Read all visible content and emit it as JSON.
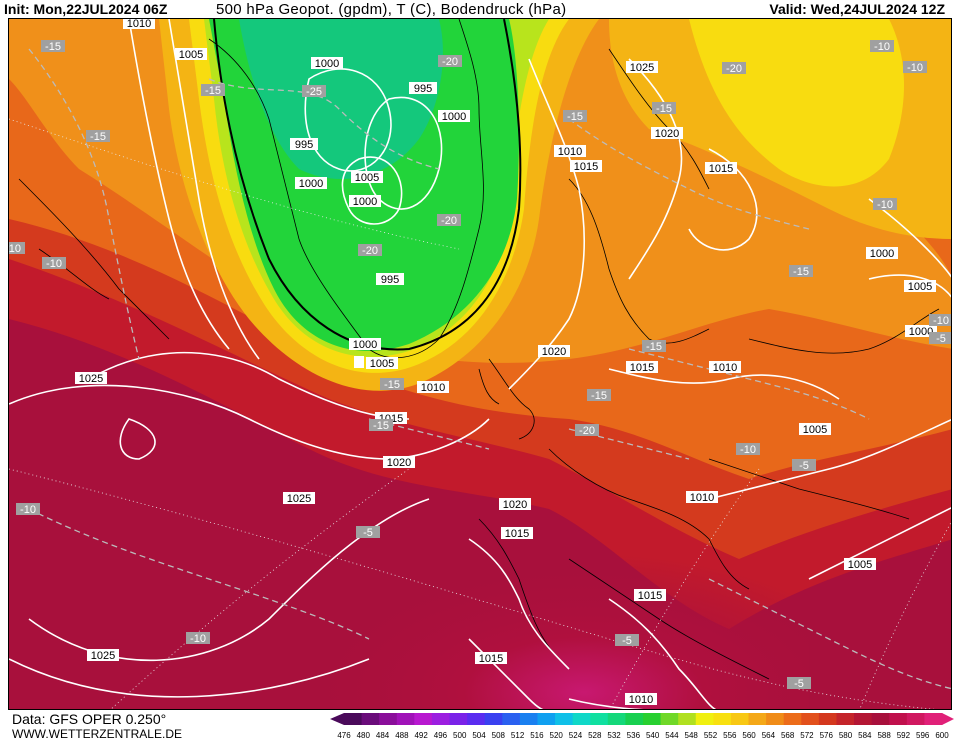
{
  "header": {
    "init": "Init: Mon,22JUL2024 06Z",
    "title": "500 hPa Geopot. (gpdm), T (C), Bodendruck (hPa)",
    "valid": "Valid: Wed,24JUL2024 12Z"
  },
  "map": {
    "pressure_labels": [
      "1010",
      "1005",
      "1000",
      "995",
      "1000",
      "995",
      "1000",
      "1005",
      "1000",
      "995",
      "1000",
      "1000",
      "1005",
      "1025",
      "1020",
      "1010",
      "1015",
      "1015",
      "1000",
      "1005",
      "1020",
      "1015",
      "1010",
      "1025",
      "1015",
      "1020",
      "1010",
      "1005",
      "1025",
      "1020",
      "1015",
      "1010",
      "1005",
      "1015",
      "1015",
      "1010",
      "1025",
      "1000",
      "1005"
    ],
    "temperature_labels": [
      "-15",
      "-15",
      "-15",
      "-25",
      "-20",
      "-20",
      "-20",
      "-15",
      "-10",
      "-15",
      "-15",
      "-20",
      "-10",
      "-10",
      "-10",
      "-15",
      "-15",
      "-15",
      "-15",
      "-10",
      "-20",
      "-10",
      "-5",
      "-5",
      "-5",
      "-5",
      "-10",
      "-10",
      "-5",
      "-10"
    ],
    "colors": {
      "magenta": "#c81870",
      "deep_red": "#a8103c",
      "red": "#c21a2c",
      "red_orange": "#d43a1e",
      "orange": "#e8681a",
      "light_orange": "#f0901a",
      "amber": "#f4b414",
      "yellow": "#f8dc10",
      "lime": "#b8e41c",
      "green": "#22d43a",
      "teal": "#14c87c"
    }
  },
  "footer": {
    "data_source": "Data: GFS OPER 0.250°",
    "website": "WWW.WETTERZENTRALE.DE"
  },
  "legend": {
    "ticks": [
      "476",
      "480",
      "484",
      "488",
      "492",
      "496",
      "500",
      "504",
      "508",
      "512",
      "516",
      "520",
      "524",
      "528",
      "532",
      "536",
      "540",
      "544",
      "548",
      "552",
      "556",
      "560",
      "564",
      "568",
      "572",
      "576",
      "580",
      "584",
      "588",
      "592",
      "596",
      "600"
    ],
    "colors": [
      "#4a0a5a",
      "#6a0c7a",
      "#8a0e9a",
      "#a012b8",
      "#b818d0",
      "#9c1ee0",
      "#7a22e8",
      "#5a2cf0",
      "#3a40f0",
      "#2a60f0",
      "#1a80f0",
      "#10a0f0",
      "#10c0e8",
      "#10d8c8",
      "#10e0a0",
      "#14d87a",
      "#18d050",
      "#28d030",
      "#70d828",
      "#b0e020",
      "#f0f010",
      "#f8e010",
      "#f8c814",
      "#f4a818",
      "#f08c18",
      "#ec6c1a",
      "#e2501c",
      "#d4381e",
      "#c4242a",
      "#b41634",
      "#a8103c",
      "#c0104c",
      "#d01860",
      "#e02078"
    ]
  }
}
